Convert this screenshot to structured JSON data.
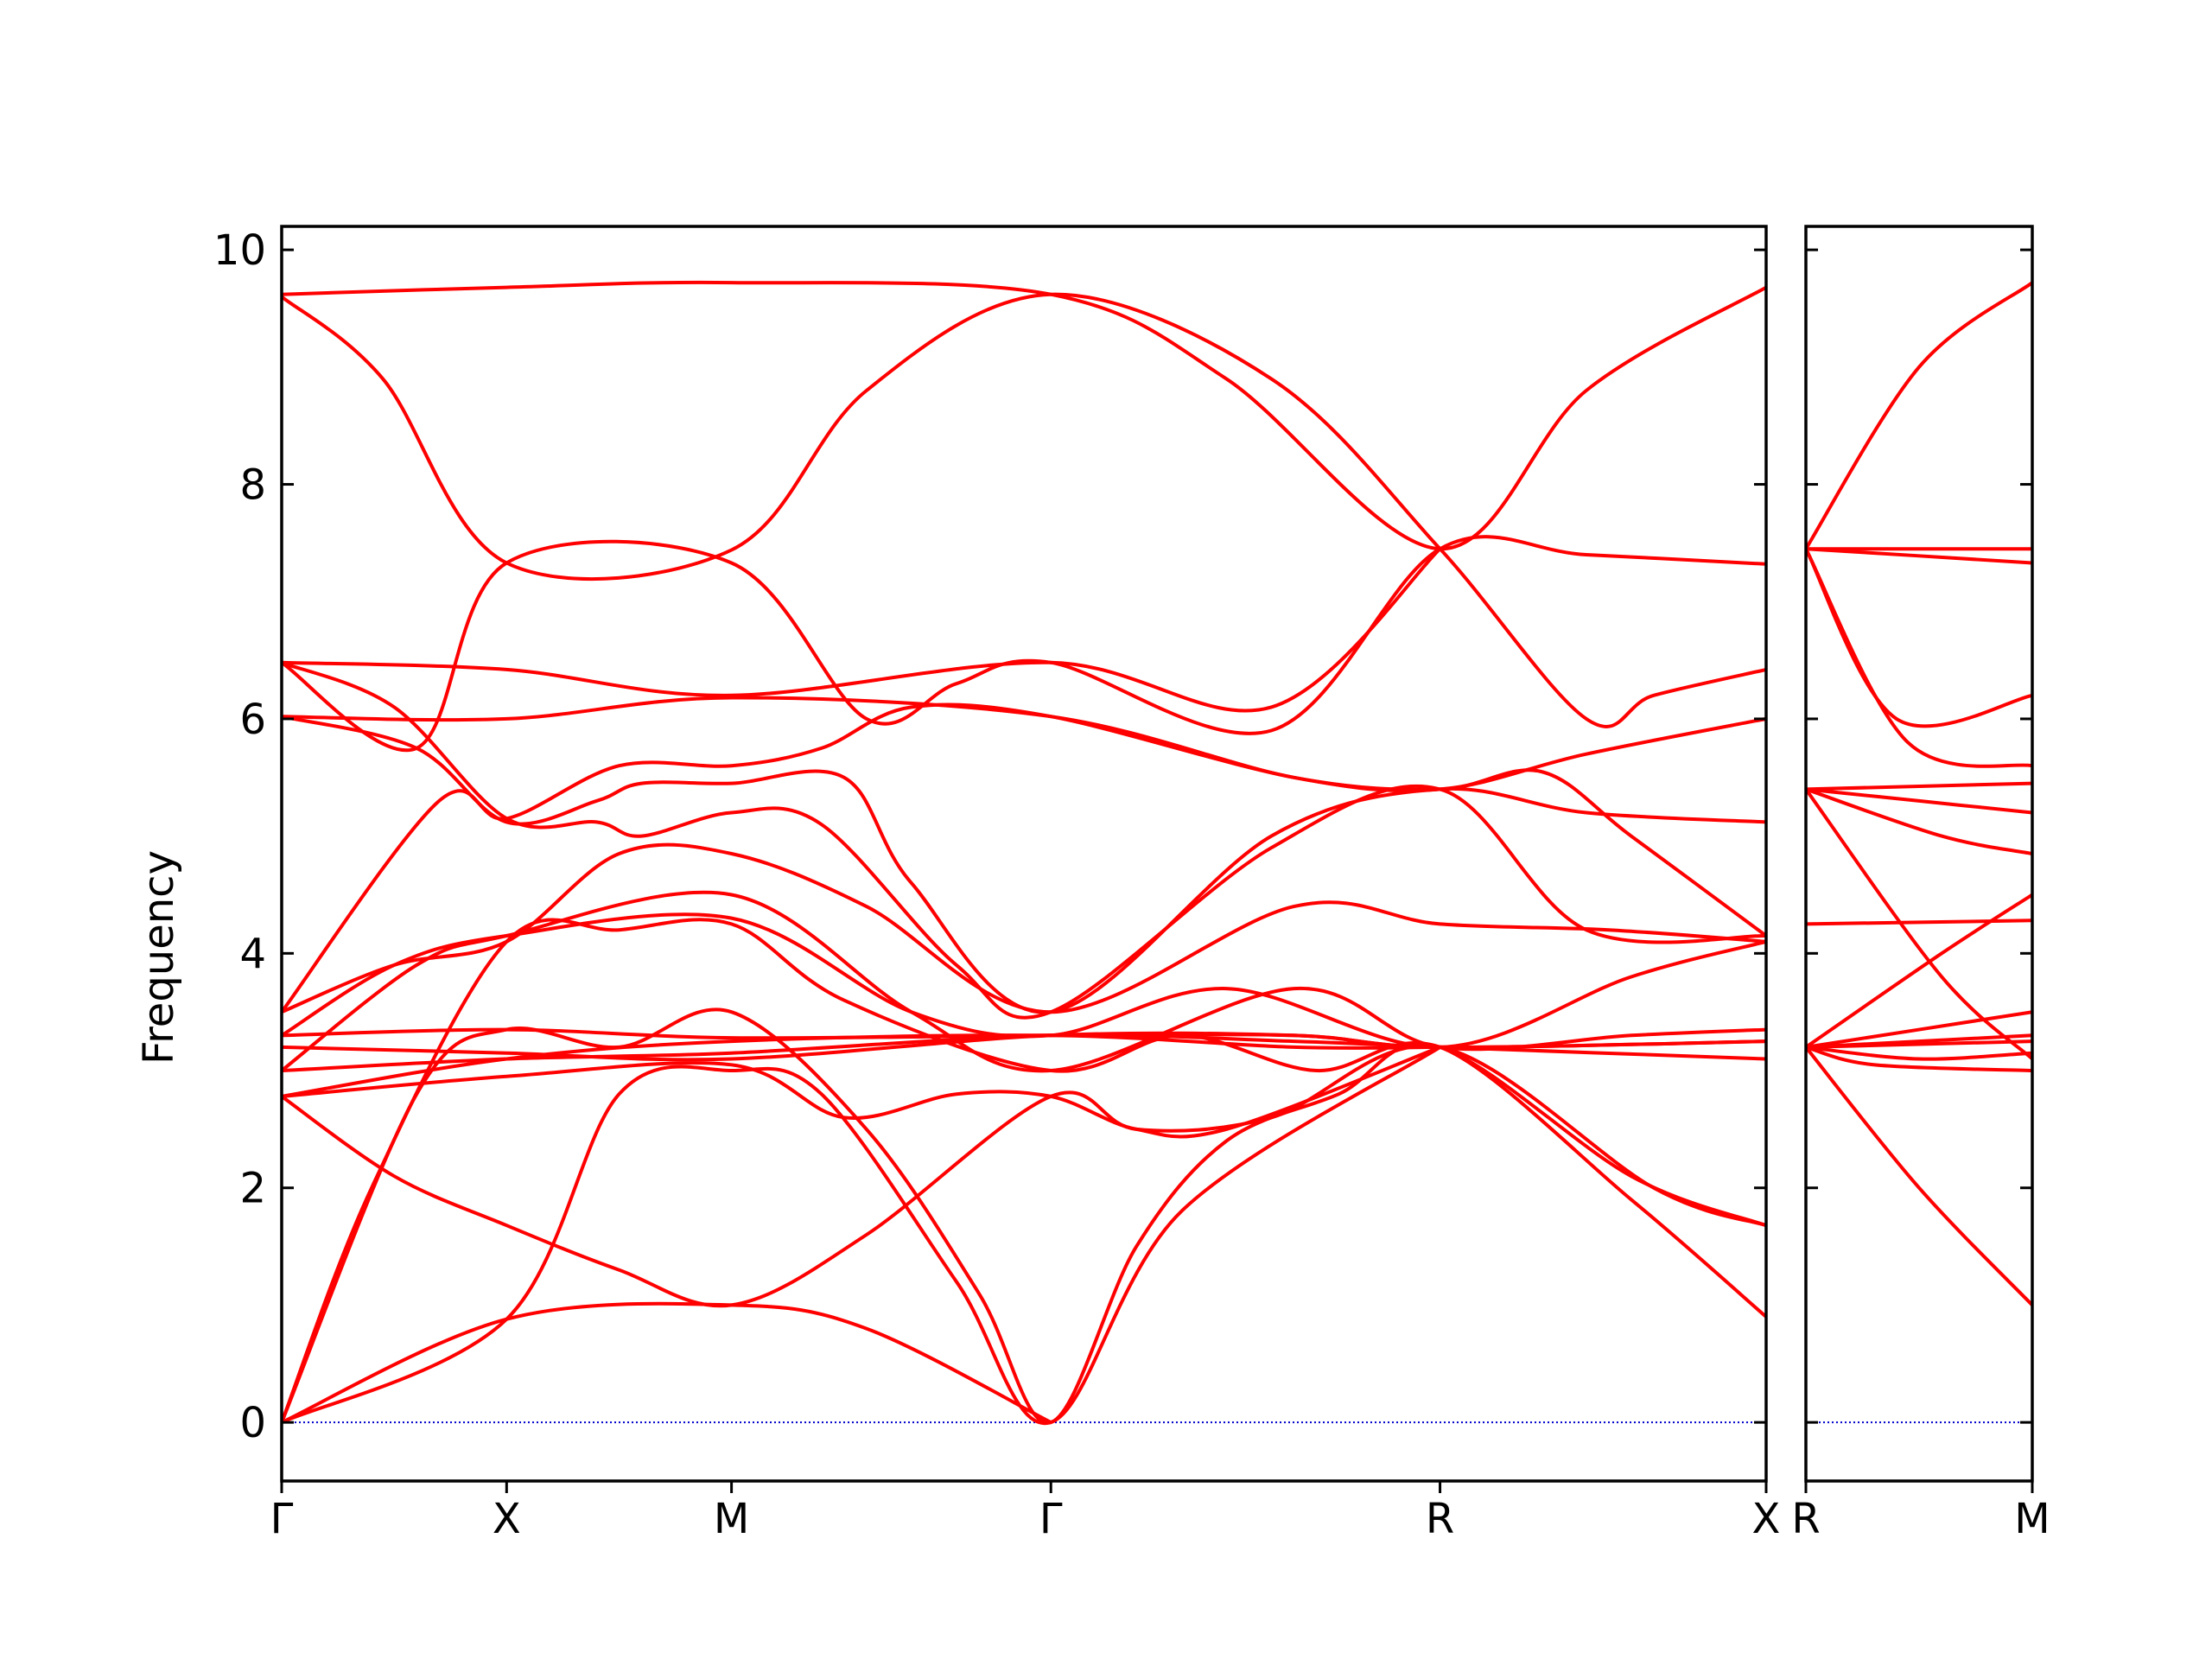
{
  "chart_data": {
    "type": "line",
    "ylabel": "Frequency",
    "ylim": [
      -0.5,
      10.2
    ],
    "yticks": [
      0,
      2,
      4,
      6,
      8,
      10
    ],
    "line_color": "#ff0000",
    "zero_line_color": "#0000cc",
    "grid": false,
    "panels": [
      {
        "id": "main",
        "xlim": [
          0,
          6.6
        ],
        "ticks": [
          {
            "x": 0,
            "label": "Γ"
          },
          {
            "x": 1.0,
            "label": "X"
          },
          {
            "x": 2.0,
            "label": "M"
          },
          {
            "x": 3.42,
            "label": "Γ"
          },
          {
            "x": 5.15,
            "label": "R"
          },
          {
            "x": 6.6,
            "label": "X"
          }
        ],
        "bands": [
          [
            [
              0,
              9.62
            ],
            [
              1,
              9.68
            ],
            [
              2,
              9.72
            ],
            [
              3.42,
              9.62
            ],
            [
              4.2,
              8.9
            ],
            [
              5.15,
              7.45
            ],
            [
              5.8,
              8.8
            ],
            [
              6.6,
              9.68
            ]
          ],
          [
            [
              0,
              9.6
            ],
            [
              0.45,
              8.9
            ],
            [
              1,
              7.33
            ],
            [
              2,
              7.44
            ],
            [
              2.6,
              8.8
            ],
            [
              3.42,
              9.62
            ],
            [
              4.4,
              8.9
            ],
            [
              5.15,
              7.45
            ],
            [
              5.8,
              6.0
            ],
            [
              6.1,
              6.2
            ],
            [
              6.6,
              6.42
            ]
          ],
          [
            [
              0,
              6.48
            ],
            [
              0.6,
              5.75
            ],
            [
              1,
              7.33
            ],
            [
              2,
              7.33
            ],
            [
              2.6,
              6.0
            ],
            [
              3.0,
              6.3
            ],
            [
              3.42,
              6.48
            ],
            [
              4.4,
              5.9
            ],
            [
              5.15,
              7.45
            ],
            [
              5.8,
              7.4
            ],
            [
              6.6,
              7.32
            ]
          ],
          [
            [
              0,
              6.48
            ],
            [
              1,
              6.42
            ],
            [
              2,
              6.2
            ],
            [
              3.42,
              6.48
            ],
            [
              4.4,
              6.1
            ],
            [
              5.15,
              7.45
            ]
          ],
          [
            [
              0,
              6.02
            ],
            [
              1,
              6.0
            ],
            [
              2,
              6.18
            ],
            [
              3.42,
              6.02
            ],
            [
              4.5,
              5.5
            ],
            [
              5.15,
              5.4
            ],
            [
              5.8,
              5.7
            ],
            [
              6.6,
              6.0
            ]
          ],
          [
            [
              0,
              6.02
            ],
            [
              0.6,
              5.75
            ],
            [
              1,
              5.12
            ],
            [
              1.4,
              5.3
            ],
            [
              1.6,
              5.45
            ],
            [
              2,
              5.45
            ],
            [
              2.5,
              5.5
            ],
            [
              2.8,
              4.6
            ],
            [
              3.42,
              3.5
            ],
            [
              4.4,
              5.0
            ],
            [
              5.15,
              5.4
            ],
            [
              5.8,
              5.2
            ],
            [
              6.6,
              5.12
            ]
          ],
          [
            [
              0,
              6.48
            ],
            [
              0.5,
              6.1
            ],
            [
              1,
              5.15
            ],
            [
              1.4,
              5.12
            ],
            [
              1.6,
              5.0
            ],
            [
              2,
              5.2
            ],
            [
              2.4,
              5.1
            ],
            [
              3.0,
              3.9
            ],
            [
              3.42,
              3.5
            ],
            [
              4.4,
              4.9
            ],
            [
              5.15,
              5.4
            ],
            [
              5.8,
              4.2
            ],
            [
              6.6,
              4.15
            ]
          ],
          [
            [
              0,
              3.5
            ],
            [
              0.7,
              5.3
            ],
            [
              1,
              5.15
            ],
            [
              1.5,
              5.6
            ],
            [
              2,
              5.6
            ],
            [
              2.4,
              5.75
            ],
            [
              2.8,
              6.1
            ],
            [
              3.42,
              6.02
            ],
            [
              4.5,
              5.5
            ],
            [
              5.15,
              5.4
            ],
            [
              5.6,
              5.55
            ],
            [
              6.0,
              5.0
            ],
            [
              6.6,
              4.15
            ]
          ],
          [
            [
              0,
              3.5
            ],
            [
              0.5,
              3.9
            ],
            [
              1,
              4.1
            ],
            [
              1.5,
              4.85
            ],
            [
              2,
              4.85
            ],
            [
              2.6,
              4.4
            ],
            [
              3.42,
              3.5
            ],
            [
              4.5,
              4.4
            ],
            [
              5.15,
              4.25
            ],
            [
              5.9,
              4.2
            ],
            [
              6.6,
              4.1
            ]
          ],
          [
            [
              0,
              3.3
            ],
            [
              0.5,
              3.9
            ],
            [
              1,
              4.15
            ],
            [
              2,
              4.3
            ],
            [
              2.8,
              3.5
            ],
            [
              3.42,
              3.3
            ],
            [
              4.2,
              3.7
            ],
            [
              5.15,
              3.2
            ],
            [
              6.0,
              3.8
            ],
            [
              6.6,
              4.1
            ]
          ],
          [
            [
              0,
              3.3
            ],
            [
              1,
              3.35
            ],
            [
              2,
              3.28
            ],
            [
              3.42,
              3.3
            ],
            [
              4.5,
              3.3
            ],
            [
              5.15,
              3.2
            ],
            [
              6.6,
              3.25
            ]
          ],
          [
            [
              0,
              3.0
            ],
            [
              0.6,
              3.9
            ],
            [
              1,
              4.15
            ],
            [
              2,
              4.5
            ],
            [
              2.8,
              3.5
            ],
            [
              3.42,
              3.0
            ],
            [
              4.5,
              3.7
            ],
            [
              5.15,
              3.2
            ],
            [
              6.0,
              3.3
            ],
            [
              6.6,
              3.35
            ]
          ],
          [
            [
              0,
              3.0
            ],
            [
              1,
              3.1
            ],
            [
              2,
              3.15
            ],
            [
              3.42,
              3.3
            ],
            [
              4.5,
              3.25
            ],
            [
              5.15,
              3.2
            ],
            [
              6.6,
              3.1
            ]
          ],
          [
            [
              0,
              3.2
            ],
            [
              1,
              3.15
            ],
            [
              2,
              3.1
            ],
            [
              3.42,
              3.3
            ],
            [
              4.5,
              3.3
            ],
            [
              5.15,
              3.2
            ],
            [
              6.6,
              3.25
            ]
          ],
          [
            [
              0,
              2.78
            ],
            [
              1,
              3.1
            ],
            [
              2,
              3.25
            ],
            [
              3.42,
              3.3
            ],
            [
              4.5,
              3.2
            ],
            [
              5.15,
              3.2
            ]
          ],
          [
            [
              0,
              2.78
            ],
            [
              0.5,
              2.1
            ],
            [
              1,
              1.68
            ],
            [
              1.5,
              1.3
            ],
            [
              2,
              1.0
            ],
            [
              2.6,
              1.6
            ],
            [
              3.42,
              2.78
            ],
            [
              3.8,
              2.5
            ],
            [
              4.4,
              2.6
            ],
            [
              5.15,
              3.2
            ],
            [
              6.1,
              2.0
            ],
            [
              6.6,
              1.68
            ]
          ],
          [
            [
              0,
              0
            ],
            [
              0.6,
              2.8
            ],
            [
              1,
              3.35
            ],
            [
              1.5,
              3.2
            ],
            [
              2,
              3.5
            ],
            [
              2.6,
              2.5
            ],
            [
              3.1,
              1.1
            ],
            [
              3.42,
              0
            ],
            [
              3.8,
              1.5
            ],
            [
              4.2,
              2.4
            ],
            [
              4.7,
              2.8
            ],
            [
              5.15,
              3.2
            ],
            [
              6.0,
              1.9
            ],
            [
              6.6,
              0.9
            ]
          ],
          [
            [
              0,
              0
            ],
            [
              0.4,
              2.0
            ],
            [
              1,
              4.1
            ],
            [
              1.5,
              4.2
            ],
            [
              2,
              4.25
            ],
            [
              2.5,
              3.6
            ],
            [
              3.42,
              3.0
            ],
            [
              4.0,
              3.3
            ],
            [
              4.6,
              3.0
            ],
            [
              5.15,
              3.2
            ],
            [
              6.0,
              2.1
            ],
            [
              6.6,
              1.68
            ]
          ],
          [
            [
              0,
              0
            ],
            [
              1,
              0.88
            ],
            [
              2,
              1.0
            ],
            [
              2.6,
              0.8
            ],
            [
              3.42,
              0
            ]
          ],
          [
            [
              0,
              0
            ],
            [
              1,
              0.88
            ],
            [
              1.5,
              2.8
            ],
            [
              2,
              3.0
            ],
            [
              2.4,
              2.8
            ],
            [
              3.0,
              1.2
            ],
            [
              3.42,
              0
            ],
            [
              4.0,
              1.8
            ],
            [
              5.15,
              3.2
            ]
          ],
          [
            [
              0,
              2.78
            ],
            [
              1,
              2.95
            ],
            [
              2,
              3.05
            ],
            [
              2.5,
              2.6
            ],
            [
              3.0,
              2.8
            ],
            [
              3.42,
              2.78
            ],
            [
              3.8,
              2.5
            ],
            [
              4.2,
              2.5
            ],
            [
              5.15,
              3.2
            ]
          ]
        ]
      },
      {
        "id": "side",
        "xlim": [
          0,
          1.0
        ],
        "ticks": [
          {
            "x": 0,
            "label": "R"
          },
          {
            "x": 1.0,
            "label": "M"
          }
        ],
        "bands": [
          [
            [
              0,
              7.45
            ],
            [
              0.5,
              9.0
            ],
            [
              1,
              9.72
            ]
          ],
          [
            [
              0,
              7.45
            ],
            [
              1,
              7.45
            ]
          ],
          [
            [
              0,
              7.45
            ],
            [
              1,
              7.33
            ]
          ],
          [
            [
              0,
              7.45
            ],
            [
              0.4,
              6.0
            ],
            [
              1,
              6.2
            ]
          ],
          [
            [
              0,
              7.45
            ],
            [
              0.45,
              5.8
            ],
            [
              1,
              5.6
            ]
          ],
          [
            [
              0,
              5.4
            ],
            [
              1,
              5.45
            ]
          ],
          [
            [
              0,
              5.4
            ],
            [
              0.5,
              5.3
            ],
            [
              1,
              5.2
            ]
          ],
          [
            [
              0,
              5.4
            ],
            [
              0.6,
              5.0
            ],
            [
              1,
              4.85
            ]
          ],
          [
            [
              0,
              5.4
            ],
            [
              0.6,
              3.8
            ],
            [
              1,
              3.1
            ]
          ],
          [
            [
              0,
              4.25
            ],
            [
              1,
              4.28
            ]
          ],
          [
            [
              0,
              3.2
            ],
            [
              0.6,
              4.0
            ],
            [
              1,
              4.5
            ]
          ],
          [
            [
              0,
              3.2
            ],
            [
              1,
              3.5
            ]
          ],
          [
            [
              0,
              3.2
            ],
            [
              1,
              3.3
            ]
          ],
          [
            [
              0,
              3.2
            ],
            [
              1,
              3.25
            ]
          ],
          [
            [
              0,
              3.2
            ],
            [
              0.3,
              3.05
            ],
            [
              1,
              3.0
            ]
          ],
          [
            [
              0,
              3.2
            ],
            [
              0.5,
              3.1
            ],
            [
              1,
              3.15
            ]
          ],
          [
            [
              0,
              3.2
            ],
            [
              0.5,
              2.0
            ],
            [
              1,
              1.0
            ]
          ]
        ]
      }
    ]
  }
}
